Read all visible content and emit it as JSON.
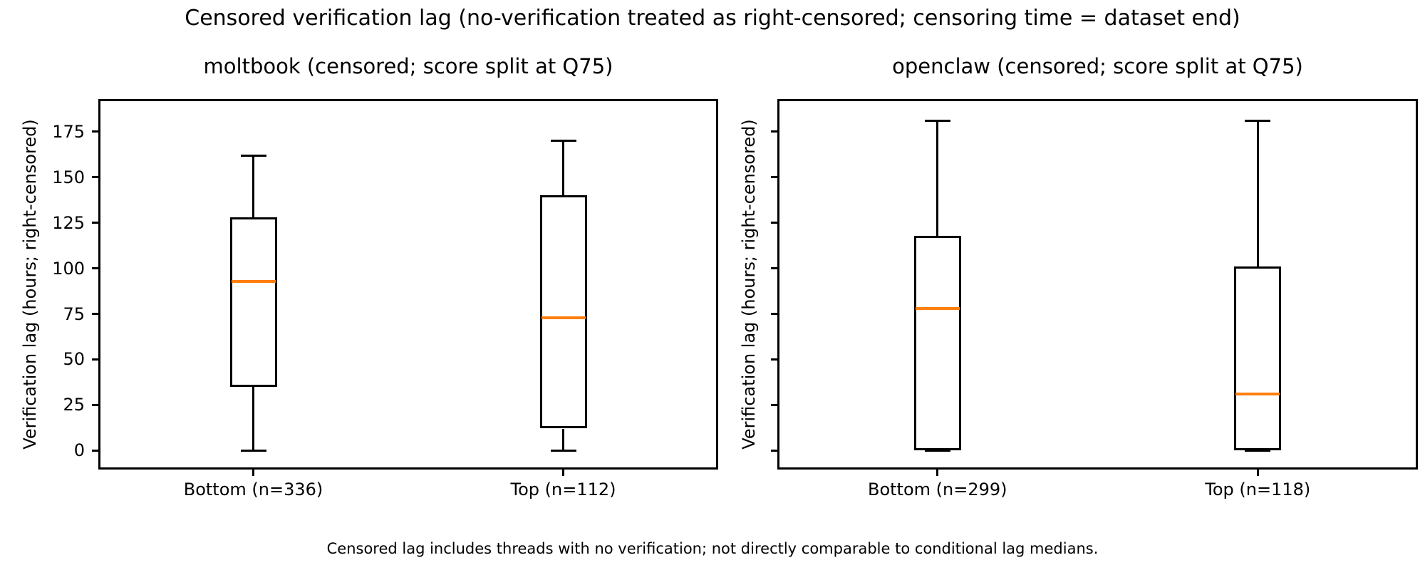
{
  "figure": {
    "suptitle": "Censored verification lag (no-verification treated as right-censored; censoring time = dataset end)",
    "footnote": "Censored lag includes threads with no verification; not directly comparable to conditional lag medians.",
    "colors": {
      "line": "#000000",
      "median": "#ff7f0e",
      "background": "#ffffff"
    }
  },
  "chart_data": [
    {
      "type": "boxplot",
      "title": "moltbook (censored; score split at Q75)",
      "ylabel": "Verification lag (hours; right-censored)",
      "xlabel": "",
      "ylim": [
        -10.5,
        193
      ],
      "yticks": [
        0,
        25,
        50,
        75,
        100,
        125,
        150,
        175
      ],
      "ytick_labels_shown": true,
      "grid": false,
      "categories": [
        "Bottom (n=336)",
        "Top (n=112)"
      ],
      "boxes": [
        {
          "label": "Bottom (n=336)",
          "n": 336,
          "whisker_low": 0,
          "q1": 35,
          "median": 93,
          "q3": 128,
          "whisker_high": 162
        },
        {
          "label": "Top (n=112)",
          "n": 112,
          "whisker_low": 0,
          "q1": 12,
          "median": 73,
          "q3": 140,
          "whisker_high": 170
        }
      ]
    },
    {
      "type": "boxplot",
      "title": "openclaw (censored; score split at Q75)",
      "ylabel": "Verification lag (hours; right-censored)",
      "xlabel": "",
      "ylim": [
        -10.5,
        193
      ],
      "yticks": [
        0,
        25,
        50,
        75,
        100,
        125,
        150,
        175
      ],
      "ytick_labels_shown": false,
      "grid": false,
      "categories": [
        "Bottom (n=299)",
        "Top (n=118)"
      ],
      "boxes": [
        {
          "label": "Bottom (n=299)",
          "n": 299,
          "whisker_low": 0,
          "q1": 0,
          "median": 78,
          "q3": 118,
          "whisker_high": 181
        },
        {
          "label": "Top (n=118)",
          "n": 118,
          "whisker_low": 0,
          "q1": 0,
          "median": 31,
          "q3": 101,
          "whisker_high": 181
        }
      ]
    }
  ]
}
